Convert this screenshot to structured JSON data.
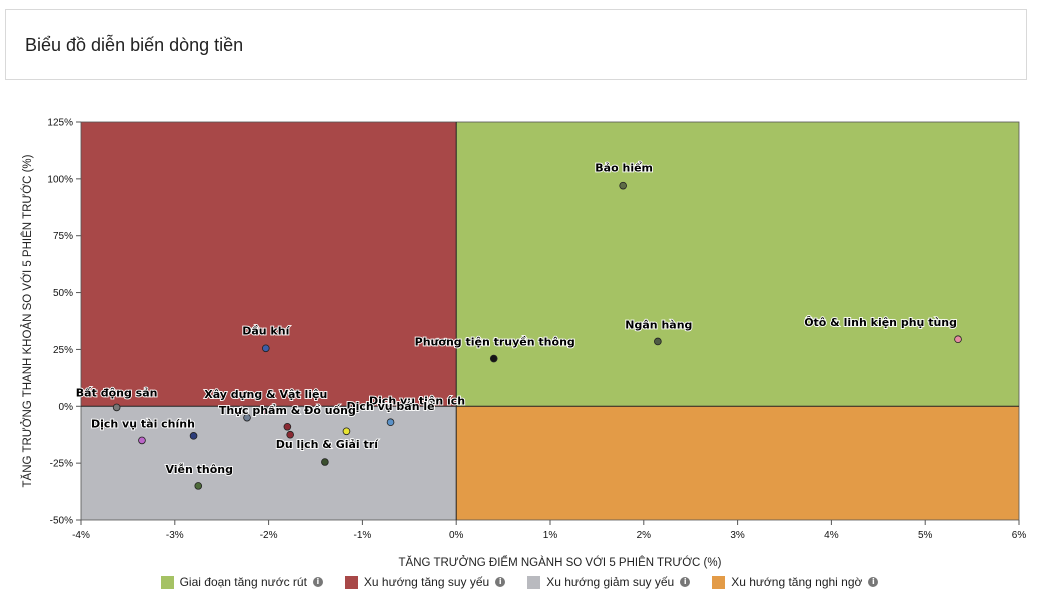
{
  "header": {
    "title": "Biểu đồ diễn biến dòng tiền"
  },
  "legend": [
    {
      "label": "Giai đoạn tăng nước rút",
      "color": "#a5c264"
    },
    {
      "label": "Xu hướng tăng suy yếu",
      "color": "#a84848"
    },
    {
      "label": "Xu hướng giảm suy yếu",
      "color": "#b9babf"
    },
    {
      "label": "Xu hướng tăng nghi ngờ",
      "color": "#e39b47"
    }
  ],
  "chart_data": {
    "type": "scatter",
    "xlabel": "TĂNG TRƯỞNG ĐIỂM NGÀNH SO VỚI 5 PHIÊN TRƯỚC (%)",
    "ylabel": "TĂNG TRƯỞNG THANH KHOẢN SO VỚI 5 PHIÊN TRƯỚC (%)",
    "xlim": [
      -4,
      6
    ],
    "ylim": [
      -50,
      125
    ],
    "xticks": [
      -4,
      -3,
      -2,
      -1,
      0,
      1,
      2,
      3,
      4,
      5,
      6
    ],
    "yticks": [
      -50,
      -25,
      0,
      25,
      50,
      75,
      100,
      125
    ],
    "xtick_labels": [
      "-4%",
      "-3%",
      "-2%",
      "-1%",
      "0%",
      "1%",
      "2%",
      "3%",
      "4%",
      "5%",
      "6%"
    ],
    "ytick_labels": [
      "-50%",
      "-25%",
      "0%",
      "25%",
      "50%",
      "75%",
      "100%",
      "125%"
    ],
    "quadrants": [
      {
        "label": "Giai đoạn tăng nước rút",
        "x_range": [
          0,
          6
        ],
        "y_range": [
          0,
          125
        ],
        "color": "#a5c264"
      },
      {
        "label": "Xu hướng tăng suy yếu",
        "x_range": [
          -4,
          0
        ],
        "y_range": [
          0,
          125
        ],
        "color": "#a84848"
      },
      {
        "label": "Xu hướng giảm suy yếu",
        "x_range": [
          -4,
          0
        ],
        "y_range": [
          -50,
          0
        ],
        "color": "#b9babf"
      },
      {
        "label": "Xu hướng tăng nghi ngờ",
        "x_range": [
          0,
          6
        ],
        "y_range": [
          -50,
          0
        ],
        "color": "#e39b47"
      }
    ],
    "points": [
      {
        "name": "Bảo hiểm",
        "x": 1.78,
        "y": 97,
        "color": "#5d6b46"
      },
      {
        "name": "Ngân hàng",
        "x": 2.15,
        "y": 28.5,
        "color": "#4e5b44"
      },
      {
        "name": "Ôtô & linh kiện phụ tùng",
        "x": 5.35,
        "y": 29.5,
        "color": "#e58ca2"
      },
      {
        "name": "Phương tiện truyền thông",
        "x": 0.4,
        "y": 21,
        "color": "#151515"
      },
      {
        "name": "Dầu khí",
        "x": -2.03,
        "y": 25.5,
        "color": "#3c5ea8"
      },
      {
        "name": "Bất động sản",
        "x": -3.62,
        "y": -0.5,
        "color": "#777777"
      },
      {
        "name": "Xây dựng & Vật liệu",
        "x": -2.03,
        "y": -2,
        "color": "#c93860"
      },
      {
        "name": "Dịch vụ tiện ích",
        "x": -2.23,
        "y": -5,
        "color": "#6d7d92"
      },
      {
        "name": "Dịch vụ bán lẻ",
        "x": -0.7,
        "y": -7,
        "color": "#5b92c8"
      },
      {
        "name": "Dịch vụ tài chính",
        "x": -3.35,
        "y": -15,
        "color": "#bb66c8"
      },
      {
        "name": "Thực phẩm & Đồ uống",
        "x": -1.8,
        "y": -9,
        "color": "#8a2a33"
      },
      {
        "name": "Du lịch & Giải trí",
        "x": -1.4,
        "y": -24.5,
        "color": "#3b4f2e"
      },
      {
        "name": "Viễn thông",
        "x": -2.75,
        "y": -35,
        "color": "#4e6b3a"
      }
    ],
    "extra_markers": [
      {
        "x": -2.8,
        "y": -13,
        "color": "#2d3d7a"
      },
      {
        "x": -1.77,
        "y": -12.5,
        "color": "#8a2a33"
      },
      {
        "x": -1.17,
        "y": -11,
        "color": "#e8e433"
      }
    ]
  }
}
